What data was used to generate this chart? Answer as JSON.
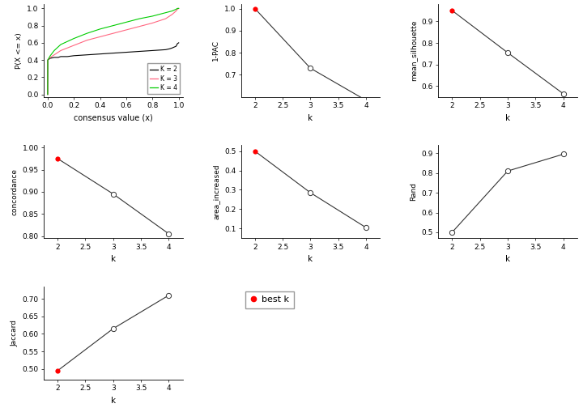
{
  "ecdf": {
    "k2": {
      "x": [
        0.0,
        0.001,
        0.01,
        0.02,
        0.05,
        0.08,
        0.1,
        0.15,
        0.2,
        0.3,
        0.4,
        0.5,
        0.6,
        0.7,
        0.8,
        0.9,
        0.93,
        0.95,
        0.98,
        0.99,
        1.0
      ],
      "y": [
        0.0,
        0.4,
        0.41,
        0.42,
        0.43,
        0.43,
        0.44,
        0.44,
        0.45,
        0.46,
        0.47,
        0.48,
        0.49,
        0.5,
        0.51,
        0.52,
        0.53,
        0.54,
        0.56,
        0.59,
        0.6
      ],
      "color": "#000000"
    },
    "k3": {
      "x": [
        0.0,
        0.001,
        0.02,
        0.05,
        0.1,
        0.2,
        0.3,
        0.4,
        0.5,
        0.6,
        0.7,
        0.8,
        0.9,
        0.95,
        0.98,
        0.99,
        1.0
      ],
      "y": [
        0.0,
        0.4,
        0.43,
        0.46,
        0.51,
        0.57,
        0.63,
        0.67,
        0.71,
        0.75,
        0.79,
        0.83,
        0.88,
        0.93,
        0.97,
        0.99,
        1.0
      ],
      "color": "#FF6680"
    },
    "k4": {
      "x": [
        0.0,
        0.001,
        0.02,
        0.05,
        0.1,
        0.2,
        0.3,
        0.4,
        0.5,
        0.6,
        0.7,
        0.8,
        0.85,
        0.9,
        0.95,
        0.98,
        0.99,
        1.0
      ],
      "y": [
        0.0,
        0.4,
        0.45,
        0.51,
        0.58,
        0.65,
        0.71,
        0.76,
        0.8,
        0.84,
        0.88,
        0.91,
        0.93,
        0.95,
        0.97,
        0.99,
        1.0,
        1.0
      ],
      "color": "#00CC00"
    }
  },
  "pac": {
    "k": [
      2,
      3,
      4
    ],
    "values": [
      1.0,
      0.73,
      0.585
    ],
    "best_k_idx": 0,
    "ylabel": "1-PAC",
    "ylim": [
      0.6,
      1.02
    ],
    "yticks": [
      0.7,
      0.8,
      0.9,
      1.0
    ]
  },
  "silhouette": {
    "k": [
      2,
      3,
      4
    ],
    "values": [
      0.95,
      0.755,
      0.565
    ],
    "best_k_idx": 0,
    "ylabel": "mean_silhouette",
    "ylim": [
      0.55,
      0.98
    ],
    "yticks": [
      0.6,
      0.7,
      0.8,
      0.9
    ]
  },
  "concordance": {
    "k": [
      2,
      3,
      4
    ],
    "values": [
      0.975,
      0.895,
      0.805
    ],
    "best_k_idx": 0,
    "ylabel": "concordance",
    "ylim": [
      0.795,
      1.005
    ],
    "yticks": [
      0.8,
      0.85,
      0.9,
      0.95,
      1.0
    ]
  },
  "area_increased": {
    "k": [
      2,
      3,
      4
    ],
    "values": [
      0.5,
      0.285,
      0.105
    ],
    "best_k_idx": 0,
    "ylabel": "area_increased",
    "ylim": [
      0.05,
      0.53
    ],
    "yticks": [
      0.1,
      0.2,
      0.3,
      0.4,
      0.5
    ]
  },
  "rand": {
    "k": [
      2,
      3,
      4
    ],
    "values": [
      0.5,
      0.81,
      0.895
    ],
    "best_k_idx": null,
    "ylabel": "Rand",
    "ylim": [
      0.47,
      0.94
    ],
    "yticks": [
      0.5,
      0.6,
      0.7,
      0.8,
      0.9
    ]
  },
  "jaccard": {
    "k": [
      2,
      3,
      4
    ],
    "values": [
      0.495,
      0.615,
      0.71
    ],
    "best_k_idx": 0,
    "ylabel": "Jaccard",
    "ylim": [
      0.47,
      0.735
    ],
    "yticks": [
      0.5,
      0.55,
      0.6,
      0.65,
      0.7
    ]
  },
  "best_k_color": "#FF0000",
  "open_circle_color": "#FFFFFF",
  "line_color": "#333333",
  "xlabel": "k",
  "ecdf_xlabel": "consensus value (x)",
  "ecdf_ylabel": "P(X <= x)",
  "ecdf_xlim": [
    -0.03,
    1.03
  ],
  "ecdf_ylim": [
    -0.03,
    1.05
  ],
  "ecdf_xticks": [
    0.0,
    0.2,
    0.4,
    0.6,
    0.8,
    1.0
  ],
  "ecdf_yticks": [
    0.0,
    0.2,
    0.4,
    0.6,
    0.8,
    1.0
  ],
  "legend_labels": [
    "K = 2",
    "K = 3",
    "K = 4"
  ],
  "legend_colors": [
    "#000000",
    "#FF6680",
    "#00CC00"
  ],
  "xlim": [
    1.75,
    4.25
  ],
  "xticks": [
    2.0,
    2.5,
    3.0,
    3.5,
    4.0
  ]
}
